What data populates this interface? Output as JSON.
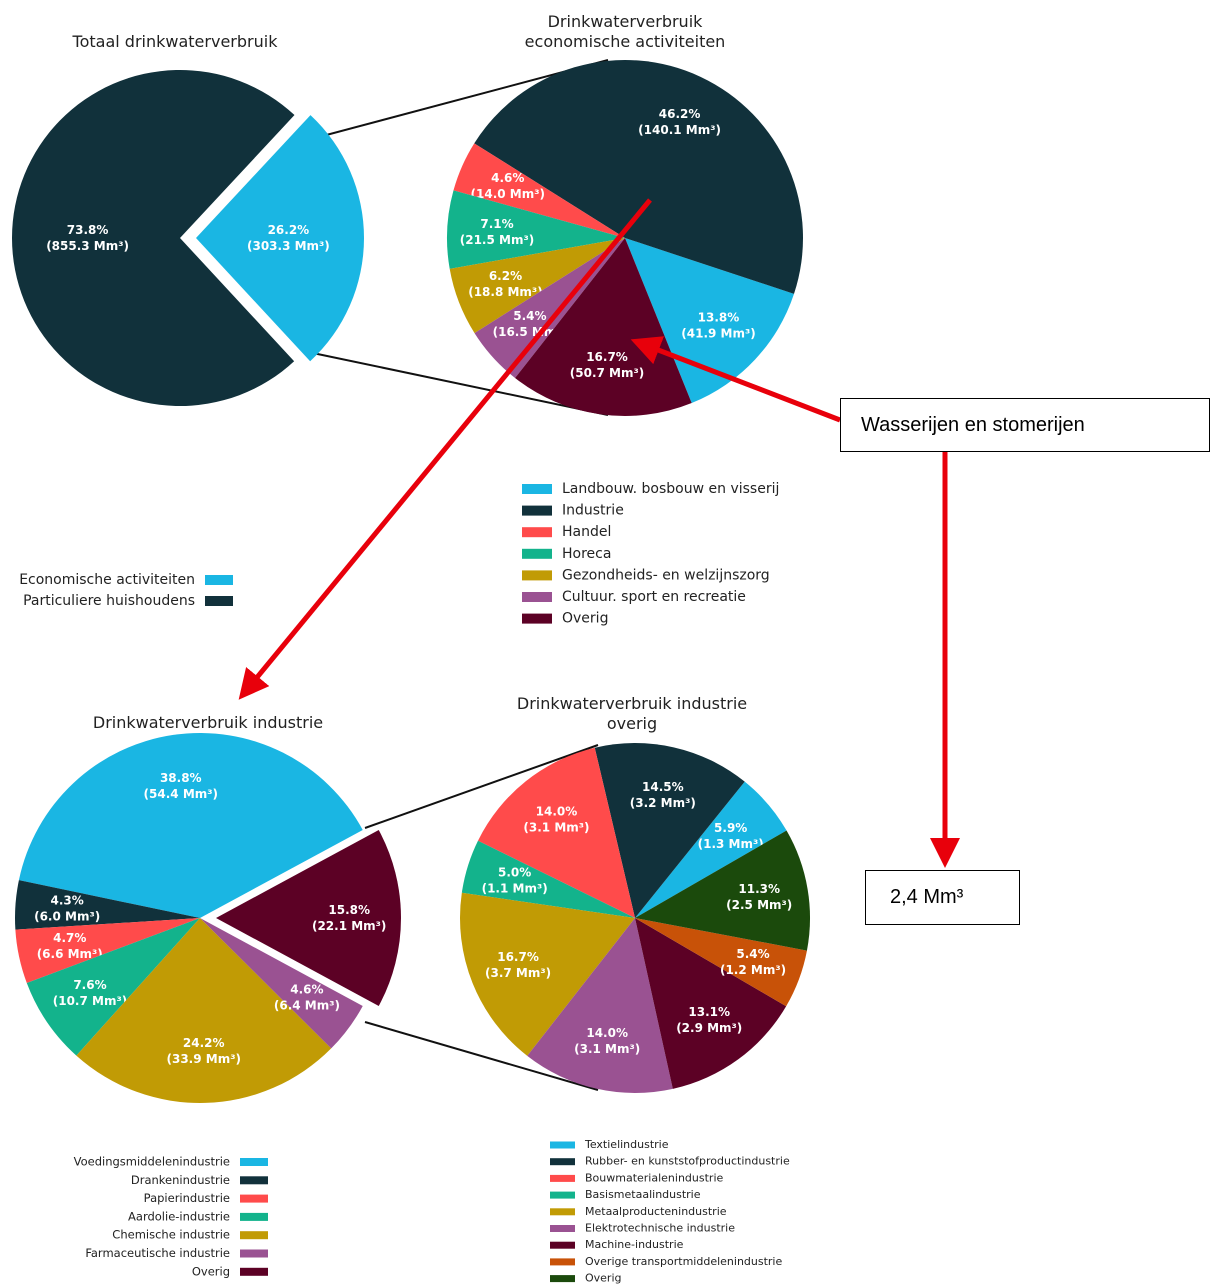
{
  "chart_data": [
    {
      "type": "pie",
      "title": "Totaal drinkwaterverbruik",
      "categories": [
        "Economische activiteiten",
        "Particuliere huishoudens"
      ],
      "colors": [
        "#1ab6e3",
        "#11313b"
      ],
      "values": [
        303.3,
        855.3
      ],
      "value_labels": [
        "(303.3 Mm³)",
        "(855.3 Mm³)"
      ],
      "percentages": [
        26.2,
        73.8
      ],
      "percentage_labels": [
        "26.2%",
        "73.8%"
      ]
    },
    {
      "type": "pie",
      "title": "Drinkwaterverbruik\neconomische activiteiten",
      "categories": [
        "Landbouw. bosbouw en visserij",
        "Industrie",
        "Handel",
        "Horeca",
        "Gezondheids- en welzijnszorg",
        "Cultuur. sport en recreatie",
        "Overig"
      ],
      "colors": [
        "#1ab6e3",
        "#11313b",
        "#ff4b4b",
        "#13b38c",
        "#c19b05",
        "#9a5292",
        "#5c0125"
      ],
      "values": [
        41.9,
        140.1,
        14.0,
        21.5,
        18.8,
        16.5,
        50.7
      ],
      "value_labels": [
        "(41.9 Mm³)",
        "(140.1 Mm³)",
        "(14.0 Mm³)",
        "(21.5 Mm³)",
        "(18.8 Mm³)",
        "(16.5 Mm³)",
        "(50.7 Mm³)"
      ],
      "percentages": [
        13.8,
        46.2,
        4.6,
        7.1,
        6.2,
        5.4,
        16.7
      ],
      "percentage_labels": [
        "13.8%",
        "46.2%",
        "4.6%",
        "7.1%",
        "6.2%",
        "5.4%",
        "16.7%"
      ]
    },
    {
      "type": "pie",
      "title": "Drinkwaterverbruik industrie",
      "categories": [
        "Voedingsmiddelenindustrie",
        "Drankenindustrie",
        "Papierindustrie",
        "Aardolie-industrie",
        "Chemische industrie",
        "Farmaceutische industrie",
        "Overig"
      ],
      "colors": [
        "#1ab6e3",
        "#11313b",
        "#ff4b4b",
        "#13b38c",
        "#c19b05",
        "#9a5292",
        "#5c0125"
      ],
      "values": [
        54.4,
        6.0,
        6.6,
        10.7,
        33.9,
        6.4,
        22.1
      ],
      "value_labels": [
        "(54.4 Mm³)",
        "(6.0 Mm³)",
        "(6.6 Mm³)",
        "(10.7 Mm³)",
        "(33.9 Mm³)",
        "(6.4 Mm³)",
        "(22.1 Mm³)"
      ],
      "percentages": [
        38.8,
        4.3,
        4.7,
        7.6,
        24.2,
        4.6,
        15.8
      ],
      "percentage_labels": [
        "38.8%",
        "4.3%",
        "4.7%",
        "7.6%",
        "24.2%",
        "4.6%",
        "15.8%"
      ]
    },
    {
      "type": "pie",
      "title": "Drinkwaterverbruik industrie\noverig",
      "categories": [
        "Textielindustrie",
        "Rubber- en kunststofproductindustrie",
        "Bouwmaterialenindustrie",
        "Basismetaalindustrie",
        "Metaalproductenindustrie",
        "Elektrotechnische industrie",
        "Machine-industrie",
        "Overige transportmiddelenindustrie",
        "Overig"
      ],
      "colors": [
        "#1ab6e3",
        "#11313b",
        "#ff4b4b",
        "#13b38c",
        "#c19b05",
        "#9a5292",
        "#5c0125",
        "#c85208",
        "#1b4a0c"
      ],
      "values": [
        1.3,
        3.2,
        3.1,
        1.1,
        3.7,
        3.1,
        2.9,
        1.2,
        2.5
      ],
      "value_labels": [
        "(1.3 Mm³)",
        "(3.2 Mm³)",
        "(3.1 Mm³)",
        "(1.1 Mm³)",
        "(3.7 Mm³)",
        "(3.1 Mm³)",
        "(2.9 Mm³)",
        "(1.2 Mm³)",
        "(2.5 Mm³)"
      ],
      "percentages": [
        5.9,
        14.5,
        14.0,
        5.0,
        16.7,
        14.0,
        13.1,
        5.4,
        11.3
      ],
      "percentage_labels": [
        "5.9%",
        "14.5%",
        "14.0%",
        "5.0%",
        "16.7%",
        "14.0%",
        "13.1%",
        "5.4%",
        "11.3%"
      ]
    }
  ],
  "annotations": [
    "Wasserijen en stomerijen",
    "2,4 Mm³"
  ]
}
